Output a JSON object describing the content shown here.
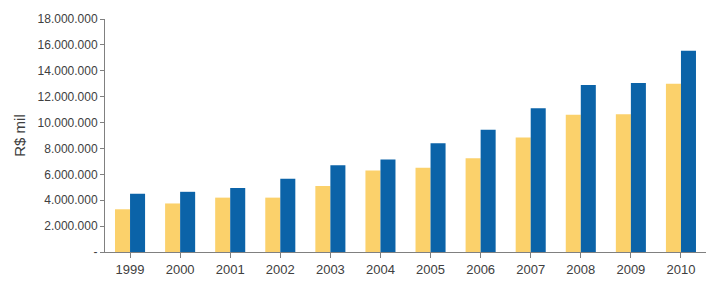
{
  "chart_data": {
    "type": "bar",
    "y_label": "R$ mil",
    "categories": [
      "1999",
      "2000",
      "2001",
      "2002",
      "2003",
      "2004",
      "2005",
      "2006",
      "2007",
      "2008",
      "2009",
      "2010"
    ],
    "series": [
      {
        "color": "#FBD16B",
        "values": [
          3300000,
          3750000,
          4200000,
          4200000,
          5100000,
          6300000,
          6500000,
          7250000,
          8850000,
          10600000,
          10650000,
          13000000
        ]
      },
      {
        "color": "#0B63A8",
        "values": [
          4500000,
          4650000,
          4950000,
          5650000,
          6700000,
          7150000,
          8400000,
          9450000,
          11100000,
          12900000,
          13050000,
          15550000
        ]
      }
    ],
    "ylim": [
      0,
      18000000
    ],
    "yticks": [
      {
        "value": 0,
        "label": "-"
      },
      {
        "value": 2000000,
        "label": "2.000.000"
      },
      {
        "value": 4000000,
        "label": "4.000.000"
      },
      {
        "value": 6000000,
        "label": "6.000.000"
      },
      {
        "value": 8000000,
        "label": "8.000.000"
      },
      {
        "value": 10000000,
        "label": "10.000.000"
      },
      {
        "value": 12000000,
        "label": "12.000.000"
      },
      {
        "value": 14000000,
        "label": "14.000.000"
      },
      {
        "value": 16000000,
        "label": "16.000.000"
      },
      {
        "value": 18000000,
        "label": "18.000.000"
      }
    ],
    "grid": false
  }
}
